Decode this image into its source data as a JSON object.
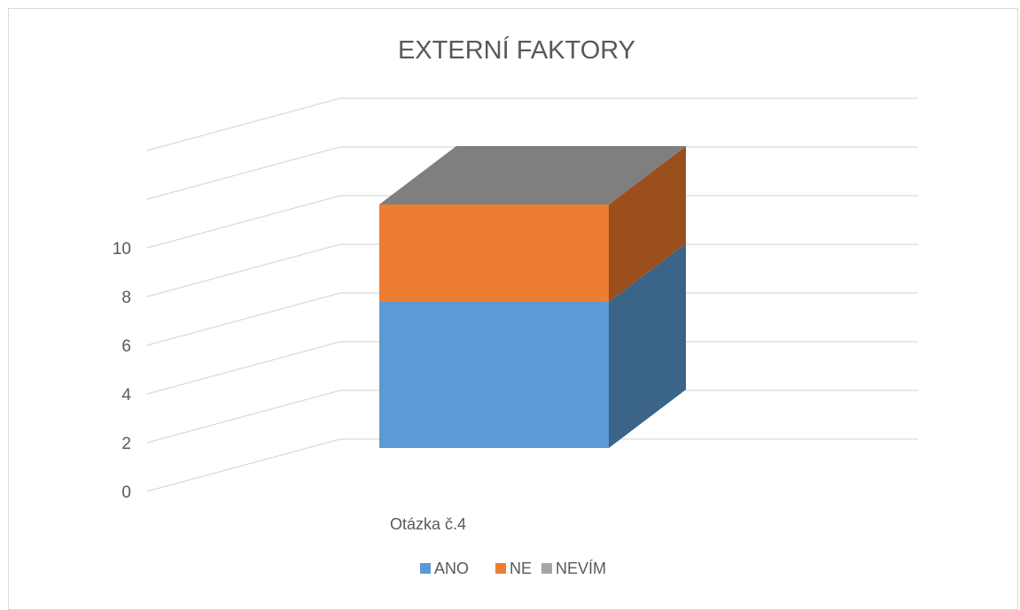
{
  "chart_data": {
    "type": "bar",
    "subtype": "stacked-3d",
    "title": "EXTERNÍ FAKTORY",
    "categories": [
      "Otázka č.4"
    ],
    "series": [
      {
        "name": "ANO",
        "values": [
          6
        ],
        "color": "#5b9bd5"
      },
      {
        "name": "NE",
        "values": [
          4
        ],
        "color": "#ed7d31"
      },
      {
        "name": "NEVÍM",
        "values": [
          0
        ],
        "color": "#a5a5a5"
      }
    ],
    "yticks": [
      "0",
      "2",
      "4",
      "6",
      "8",
      "10"
    ],
    "ylim": [
      0,
      10
    ],
    "grid": true,
    "legend": "bottom"
  },
  "colors": {
    "title": "#595959",
    "gridline": "#d9d9d9",
    "ano_side": "#3a6488",
    "ne_side": "#9b4f1c",
    "top_face": "#7f7f7f"
  }
}
